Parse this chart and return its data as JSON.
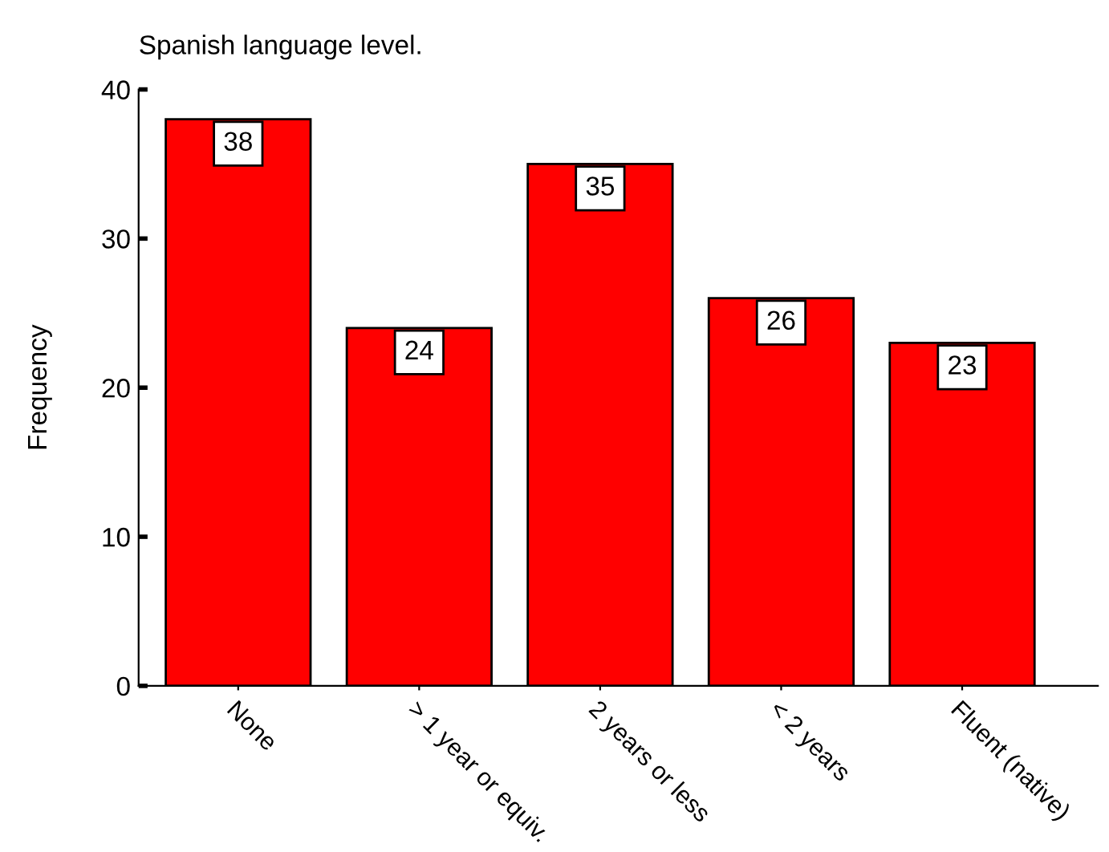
{
  "chart_data": {
    "type": "bar",
    "title": "Spanish language level.",
    "ylabel": "Frequency",
    "categories": [
      "None",
      "> 1 year or equiv.",
      "2 years or less",
      "< 2 years",
      "Fluent (native)"
    ],
    "values": [
      38,
      24,
      35,
      26,
      23
    ],
    "color": "#ff0000",
    "ylim": [
      0,
      40
    ],
    "yticks": [
      0,
      10,
      20,
      30,
      40
    ],
    "grid": false,
    "legend": false,
    "data_labels": true
  }
}
